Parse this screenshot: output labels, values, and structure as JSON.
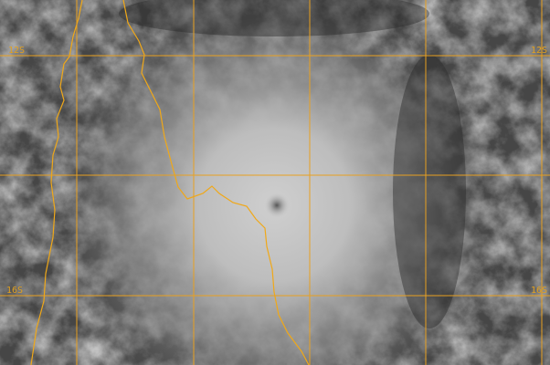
{
  "image": {
    "type": "satellite-infrared-cyclone",
    "colors": {
      "grid": "#e8a020",
      "coastline": "#f0a818",
      "cloud_bright": "#d8d8d8",
      "cloud_dark": "#2e2e2e"
    }
  },
  "latitude_labels": {
    "left_top": "12S",
    "right_top": "12S",
    "left_bottom": "16S",
    "right_bottom": "16S"
  }
}
